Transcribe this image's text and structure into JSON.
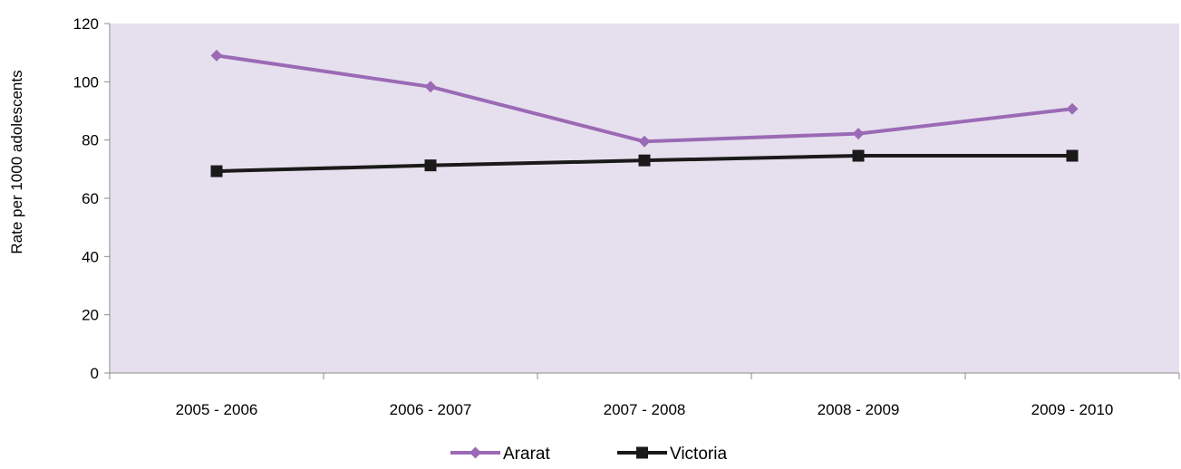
{
  "chart_data": {
    "type": "line",
    "title": "",
    "xlabel": "",
    "ylabel": "Rate per 1000 adolescents",
    "categories": [
      "2005 - 2006",
      "2006 - 2007",
      "2007 - 2008",
      "2008 - 2009",
      "2009 - 2010"
    ],
    "ylim": [
      0,
      120
    ],
    "yticks": [
      "0",
      "20",
      "40",
      "60",
      "80",
      "100",
      "120"
    ],
    "grid": false,
    "plot_background": "#E6E0EE",
    "legend_position": "bottom",
    "series": [
      {
        "name": "Ararat",
        "values": [
          109.0,
          98.3,
          79.5,
          82.2,
          90.7
        ],
        "color": "#9B6AB5",
        "marker": "diamond"
      },
      {
        "name": "Victoria",
        "values": [
          69.3,
          71.3,
          73.0,
          74.6,
          74.6
        ],
        "color": "#1A1A1A",
        "marker": "square"
      }
    ]
  }
}
